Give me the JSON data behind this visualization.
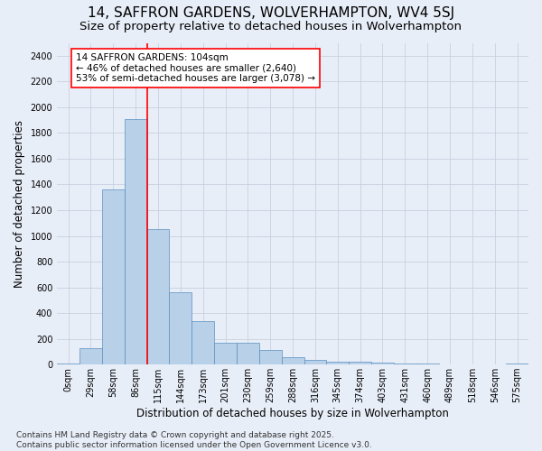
{
  "title_line1": "14, SAFFRON GARDENS, WOLVERHAMPTON, WV4 5SJ",
  "title_line2": "Size of property relative to detached houses in Wolverhampton",
  "xlabel": "Distribution of detached houses by size in Wolverhampton",
  "ylabel": "Number of detached properties",
  "footnote": "Contains HM Land Registry data © Crown copyright and database right 2025.\nContains public sector information licensed under the Open Government Licence v3.0.",
  "bin_labels": [
    "0sqm",
    "29sqm",
    "58sqm",
    "86sqm",
    "115sqm",
    "144sqm",
    "173sqm",
    "201sqm",
    "230sqm",
    "259sqm",
    "288sqm",
    "316sqm",
    "345sqm",
    "374sqm",
    "403sqm",
    "431sqm",
    "460sqm",
    "489sqm",
    "518sqm",
    "546sqm",
    "575sqm"
  ],
  "bar_values": [
    10,
    125,
    1360,
    1910,
    1055,
    565,
    335,
    170,
    170,
    110,
    60,
    35,
    25,
    25,
    15,
    5,
    5,
    3,
    2,
    1,
    10
  ],
  "bar_color": "#b8d0e8",
  "bar_edge_color": "#5a8fc0",
  "grid_color": "#c8cfe0",
  "background_color": "#e8eef8",
  "annotation_text": "14 SAFFRON GARDENS: 104sqm\n← 46% of detached houses are smaller (2,640)\n53% of semi-detached houses are larger (3,078) →",
  "red_line_x": 3.5,
  "annotation_box_facecolor": "white",
  "annotation_box_edgecolor": "red",
  "red_line_color": "red",
  "ylim": [
    0,
    2500
  ],
  "yticks": [
    0,
    200,
    400,
    600,
    800,
    1000,
    1200,
    1400,
    1600,
    1800,
    2000,
    2200,
    2400
  ],
  "title_fontsize": 11,
  "subtitle_fontsize": 9.5,
  "annotation_fontsize": 7.5,
  "footnote_fontsize": 6.5,
  "xlabel_fontsize": 8.5,
  "ylabel_fontsize": 8.5,
  "tick_fontsize": 7
}
